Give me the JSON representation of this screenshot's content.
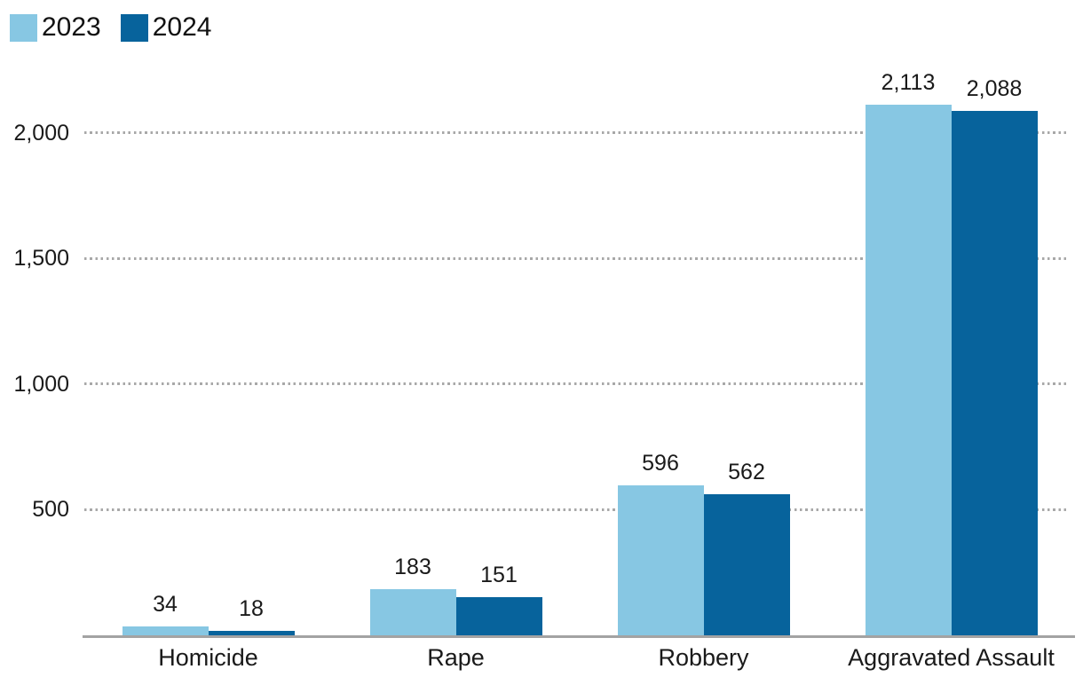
{
  "chart_data": {
    "type": "bar",
    "title": "",
    "categories": [
      "Homicide",
      "Rape",
      "Robbery",
      "Aggravated Assault"
    ],
    "series": [
      {
        "name": "2023",
        "color": "#87c7e3",
        "values": [
          34,
          183,
          596,
          2113
        ],
        "value_labels": [
          "34",
          "183",
          "596",
          "2,113"
        ]
      },
      {
        "name": "2024",
        "color": "#07639c",
        "values": [
          18,
          151,
          562,
          2088
        ],
        "value_labels": [
          "18",
          "151",
          "562",
          "2,088"
        ]
      }
    ],
    "xlabel": "",
    "ylabel": "",
    "ylim": [
      0,
      2200
    ],
    "y_ticks": [
      {
        "value": 500,
        "label": "500"
      },
      {
        "value": 1000,
        "label": "1,000"
      },
      {
        "value": 1500,
        "label": "1,500"
      },
      {
        "value": 2000,
        "label": "2,000"
      }
    ],
    "grid": "horizontal-dotted",
    "legend_position": "top-left",
    "bar_labels_shown": true
  },
  "colors": {
    "series_2023": "#87c7e3",
    "series_2024": "#07639c",
    "axis_line": "#a3a3a3",
    "gridline": "#a8a8a8",
    "text": "#1a1a1a",
    "background": "#ffffff"
  }
}
